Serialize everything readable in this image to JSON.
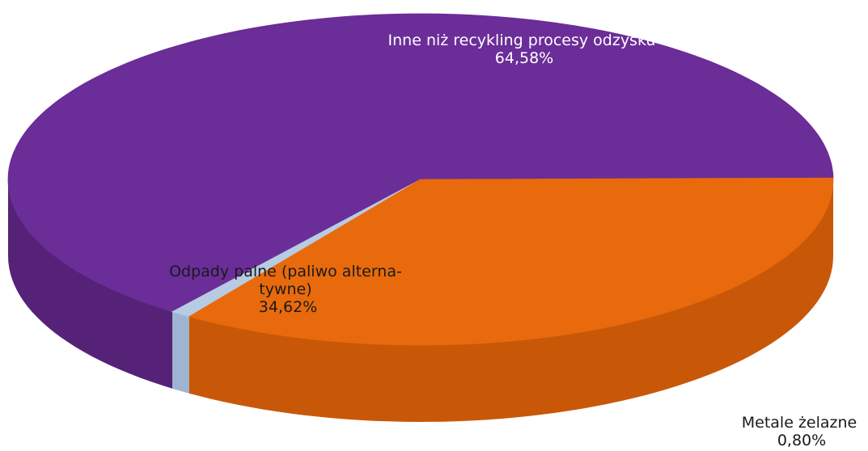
{
  "chart_data": {
    "type": "pie",
    "variant": "3d",
    "title": "",
    "slices": [
      {
        "label_lines": [
          "Inne niż recykling procesy odzysku"
        ],
        "value": 64.58,
        "value_label": "64,58%",
        "color": "#6b2d98",
        "side_color": "#552278"
      },
      {
        "label_lines": [
          "Metale żelazne"
        ],
        "value": 0.8,
        "value_label": "0,80%",
        "color": "#b7cbe3",
        "side_color": "#9db4d2"
      },
      {
        "label_lines": [
          "Odpady palne (paliwo alterna-",
          "tywne)"
        ],
        "value": 34.62,
        "value_label": "34,62%",
        "color": "#e86a0c",
        "side_color": "#c85808"
      }
    ]
  }
}
